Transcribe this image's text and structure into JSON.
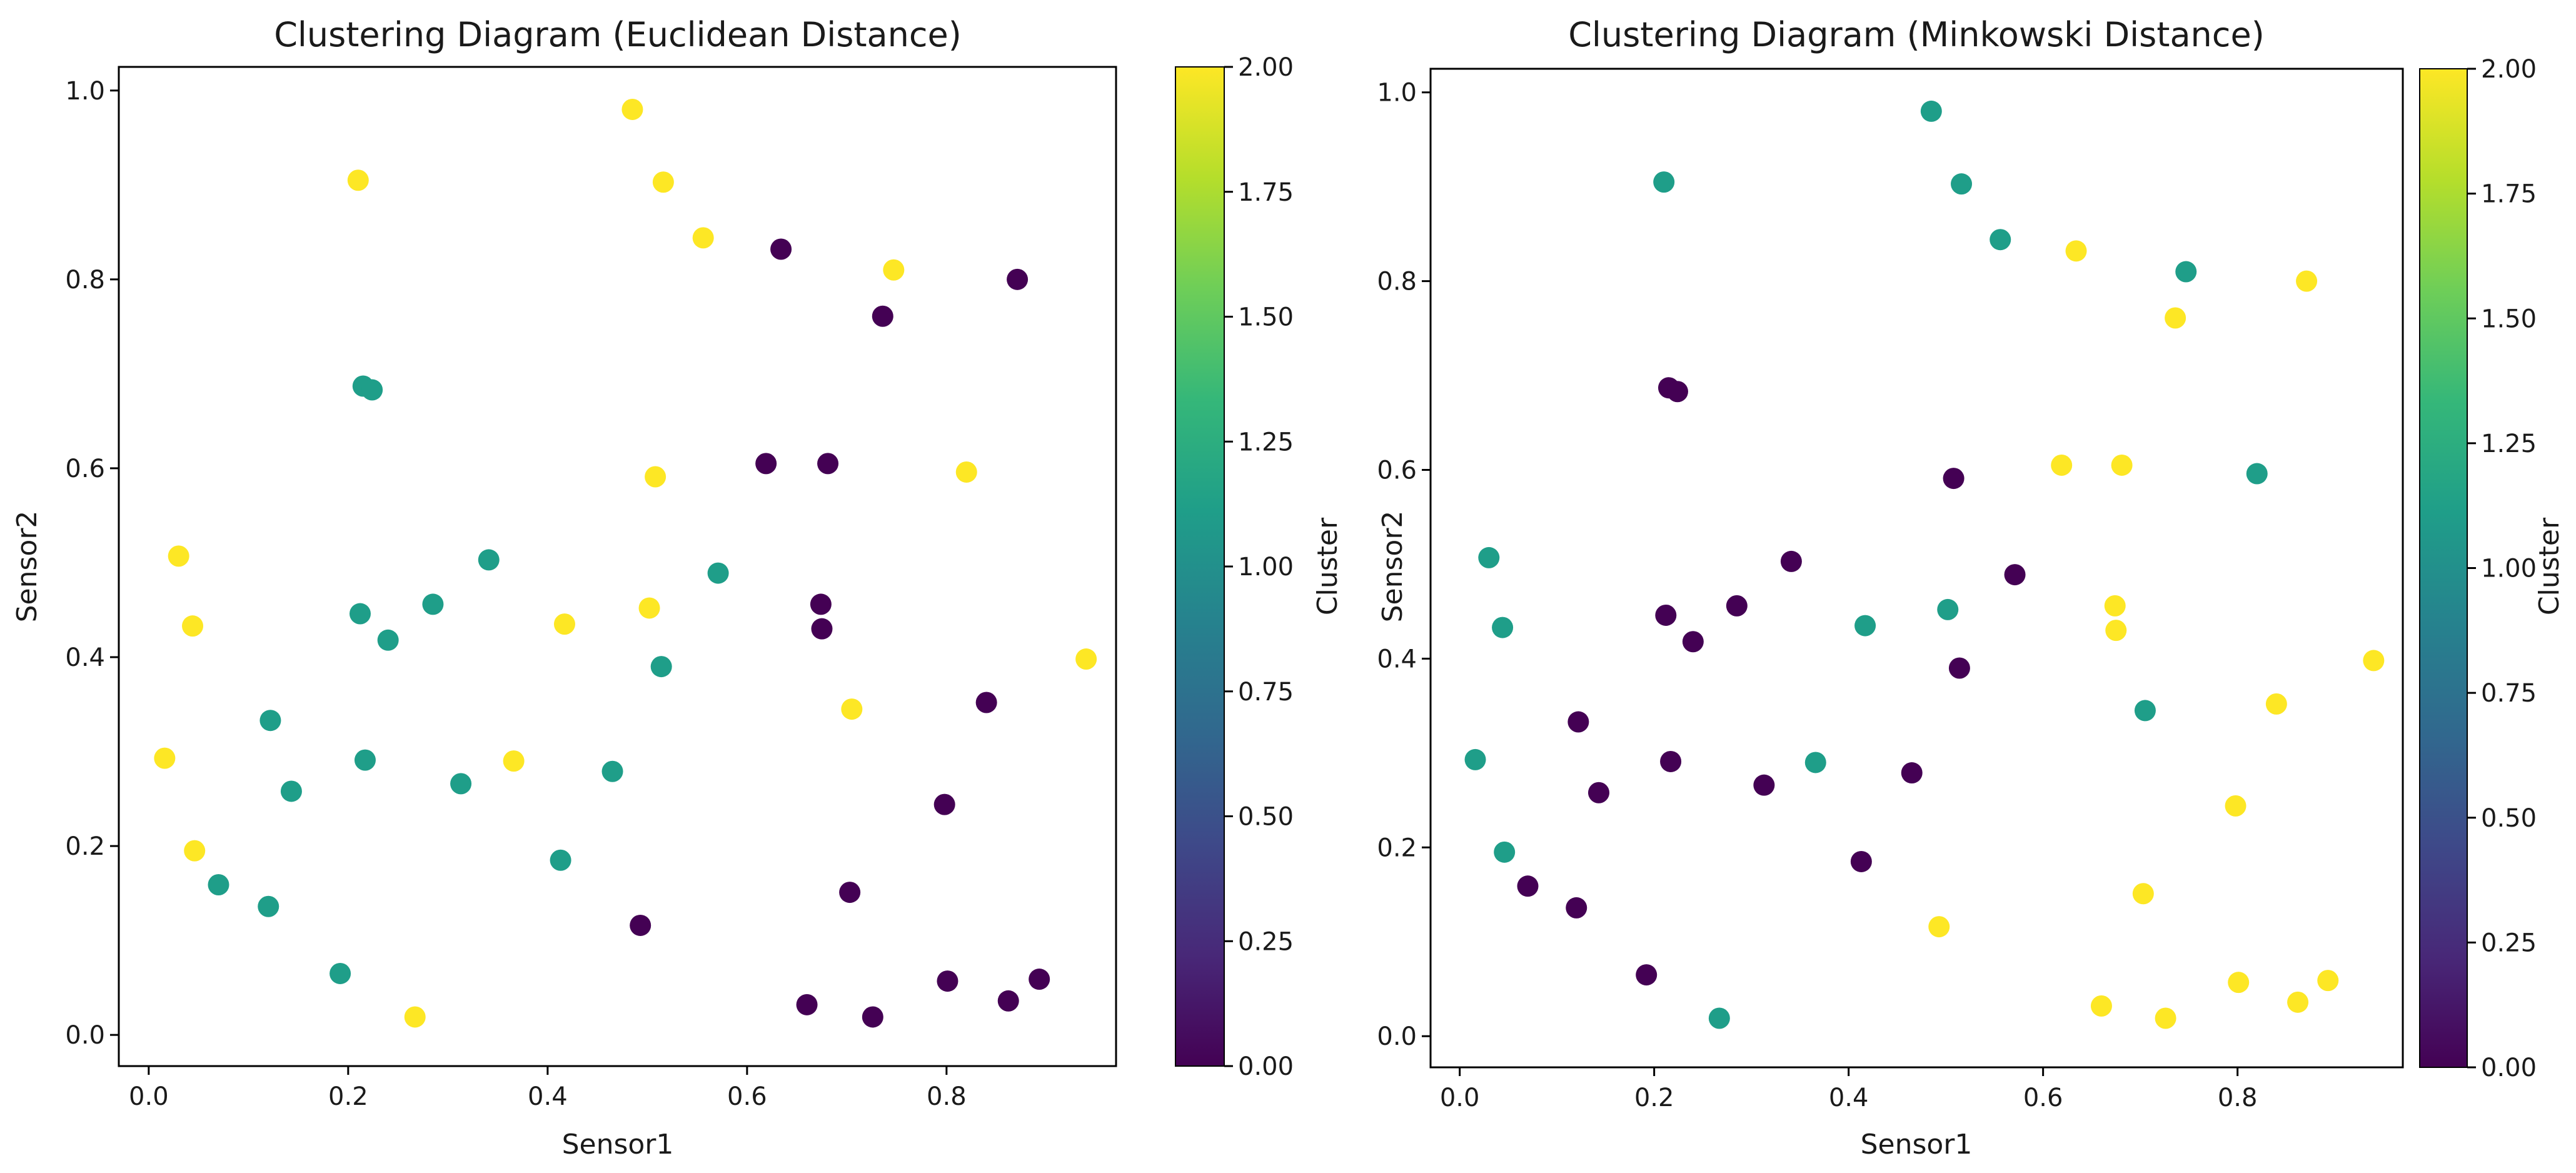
{
  "chart_data": [
    {
      "type": "scatter",
      "title": "Clustering Diagram (Euclidean Distance)",
      "xlabel": "Sensor1",
      "ylabel": "Sensor2",
      "xlim": [
        -0.03,
        0.97
      ],
      "ylim": [
        -0.033,
        1.025
      ],
      "xticks": [
        0.0,
        0.2,
        0.4,
        0.6,
        0.8
      ],
      "xtick_labels": [
        "0.0",
        "0.2",
        "0.4",
        "0.6",
        "0.8"
      ],
      "yticks": [
        0.0,
        0.2,
        0.4,
        0.6,
        0.8,
        1.0
      ],
      "ytick_labels": [
        "0.0",
        "0.2",
        "0.4",
        "0.6",
        "0.8",
        "1.0"
      ],
      "colorbar": {
        "label": "Cluster",
        "range": [
          0.0,
          2.0
        ],
        "ticks": [
          0.0,
          0.25,
          0.5,
          0.75,
          1.0,
          1.25,
          1.5,
          1.75,
          2.0
        ],
        "tick_labels": [
          "0.00",
          "0.25",
          "0.50",
          "0.75",
          "1.00",
          "1.25",
          "1.50",
          "1.75",
          "2.00"
        ],
        "colormap": "viridis"
      },
      "points": [
        {
          "x": 0.016,
          "y": 0.293,
          "cluster": 2
        },
        {
          "x": 0.03,
          "y": 0.507,
          "cluster": 2
        },
        {
          "x": 0.044,
          "y": 0.433,
          "cluster": 2
        },
        {
          "x": 0.046,
          "y": 0.195,
          "cluster": 2
        },
        {
          "x": 0.07,
          "y": 0.159,
          "cluster": 1
        },
        {
          "x": 0.12,
          "y": 0.136,
          "cluster": 1
        },
        {
          "x": 0.122,
          "y": 0.333,
          "cluster": 1
        },
        {
          "x": 0.143,
          "y": 0.258,
          "cluster": 1
        },
        {
          "x": 0.192,
          "y": 0.065,
          "cluster": 1
        },
        {
          "x": 0.21,
          "y": 0.905,
          "cluster": 2
        },
        {
          "x": 0.212,
          "y": 0.446,
          "cluster": 1
        },
        {
          "x": 0.215,
          "y": 0.687,
          "cluster": 1
        },
        {
          "x": 0.217,
          "y": 0.291,
          "cluster": 1
        },
        {
          "x": 0.224,
          "y": 0.683,
          "cluster": 1
        },
        {
          "x": 0.24,
          "y": 0.418,
          "cluster": 1
        },
        {
          "x": 0.267,
          "y": 0.019,
          "cluster": 2
        },
        {
          "x": 0.285,
          "y": 0.456,
          "cluster": 1
        },
        {
          "x": 0.313,
          "y": 0.266,
          "cluster": 1
        },
        {
          "x": 0.341,
          "y": 0.503,
          "cluster": 1
        },
        {
          "x": 0.366,
          "y": 0.29,
          "cluster": 2
        },
        {
          "x": 0.413,
          "y": 0.185,
          "cluster": 1
        },
        {
          "x": 0.417,
          "y": 0.435,
          "cluster": 2
        },
        {
          "x": 0.465,
          "y": 0.279,
          "cluster": 1
        },
        {
          "x": 0.485,
          "y": 0.98,
          "cluster": 2
        },
        {
          "x": 0.493,
          "y": 0.116,
          "cluster": 0
        },
        {
          "x": 0.502,
          "y": 0.452,
          "cluster": 2
        },
        {
          "x": 0.508,
          "y": 0.591,
          "cluster": 2
        },
        {
          "x": 0.514,
          "y": 0.39,
          "cluster": 1
        },
        {
          "x": 0.516,
          "y": 0.903,
          "cluster": 2
        },
        {
          "x": 0.556,
          "y": 0.844,
          "cluster": 2
        },
        {
          "x": 0.571,
          "y": 0.489,
          "cluster": 1
        },
        {
          "x": 0.619,
          "y": 0.605,
          "cluster": 0
        },
        {
          "x": 0.634,
          "y": 0.832,
          "cluster": 0
        },
        {
          "x": 0.66,
          "y": 0.032,
          "cluster": 0
        },
        {
          "x": 0.674,
          "y": 0.456,
          "cluster": 0
        },
        {
          "x": 0.675,
          "y": 0.43,
          "cluster": 0
        },
        {
          "x": 0.681,
          "y": 0.605,
          "cluster": 0
        },
        {
          "x": 0.703,
          "y": 0.151,
          "cluster": 0
        },
        {
          "x": 0.705,
          "y": 0.345,
          "cluster": 2
        },
        {
          "x": 0.726,
          "y": 0.019,
          "cluster": 0
        },
        {
          "x": 0.736,
          "y": 0.761,
          "cluster": 0
        },
        {
          "x": 0.747,
          "y": 0.81,
          "cluster": 2
        },
        {
          "x": 0.798,
          "y": 0.244,
          "cluster": 0
        },
        {
          "x": 0.801,
          "y": 0.057,
          "cluster": 0
        },
        {
          "x": 0.82,
          "y": 0.596,
          "cluster": 2
        },
        {
          "x": 0.84,
          "y": 0.352,
          "cluster": 0
        },
        {
          "x": 0.862,
          "y": 0.036,
          "cluster": 0
        },
        {
          "x": 0.871,
          "y": 0.8,
          "cluster": 0
        },
        {
          "x": 0.893,
          "y": 0.059,
          "cluster": 0
        },
        {
          "x": 0.94,
          "y": 0.398,
          "cluster": 2
        }
      ]
    },
    {
      "type": "scatter",
      "title": "Clustering Diagram (Minkowski Distance)",
      "xlabel": "Sensor1",
      "ylabel": "Sensor2",
      "xlim": [
        -0.03,
        0.97
      ],
      "ylim": [
        -0.033,
        1.025
      ],
      "xticks": [
        0.0,
        0.2,
        0.4,
        0.6,
        0.8
      ],
      "xtick_labels": [
        "0.0",
        "0.2",
        "0.4",
        "0.6",
        "0.8"
      ],
      "yticks": [
        0.0,
        0.2,
        0.4,
        0.6,
        0.8,
        1.0
      ],
      "ytick_labels": [
        "0.0",
        "0.2",
        "0.4",
        "0.6",
        "0.8",
        "1.0"
      ],
      "colorbar": {
        "label": "Cluster",
        "range": [
          0.0,
          2.0
        ],
        "ticks": [
          0.0,
          0.25,
          0.5,
          0.75,
          1.0,
          1.25,
          1.5,
          1.75,
          2.0
        ],
        "tick_labels": [
          "0.00",
          "0.25",
          "0.50",
          "0.75",
          "1.00",
          "1.25",
          "1.50",
          "1.75",
          "2.00"
        ],
        "colormap": "viridis"
      },
      "points": [
        {
          "x": 0.016,
          "y": 0.293,
          "cluster": 1
        },
        {
          "x": 0.03,
          "y": 0.507,
          "cluster": 1
        },
        {
          "x": 0.044,
          "y": 0.433,
          "cluster": 1
        },
        {
          "x": 0.046,
          "y": 0.195,
          "cluster": 1
        },
        {
          "x": 0.07,
          "y": 0.159,
          "cluster": 0
        },
        {
          "x": 0.12,
          "y": 0.136,
          "cluster": 0
        },
        {
          "x": 0.122,
          "y": 0.333,
          "cluster": 0
        },
        {
          "x": 0.143,
          "y": 0.258,
          "cluster": 0
        },
        {
          "x": 0.192,
          "y": 0.065,
          "cluster": 0
        },
        {
          "x": 0.21,
          "y": 0.905,
          "cluster": 1
        },
        {
          "x": 0.212,
          "y": 0.446,
          "cluster": 0
        },
        {
          "x": 0.215,
          "y": 0.687,
          "cluster": 0
        },
        {
          "x": 0.217,
          "y": 0.291,
          "cluster": 0
        },
        {
          "x": 0.224,
          "y": 0.683,
          "cluster": 0
        },
        {
          "x": 0.24,
          "y": 0.418,
          "cluster": 0
        },
        {
          "x": 0.267,
          "y": 0.019,
          "cluster": 1
        },
        {
          "x": 0.285,
          "y": 0.456,
          "cluster": 0
        },
        {
          "x": 0.313,
          "y": 0.266,
          "cluster": 0
        },
        {
          "x": 0.341,
          "y": 0.503,
          "cluster": 0
        },
        {
          "x": 0.366,
          "y": 0.29,
          "cluster": 1
        },
        {
          "x": 0.413,
          "y": 0.185,
          "cluster": 0
        },
        {
          "x": 0.417,
          "y": 0.435,
          "cluster": 1
        },
        {
          "x": 0.465,
          "y": 0.279,
          "cluster": 0
        },
        {
          "x": 0.485,
          "y": 0.98,
          "cluster": 1
        },
        {
          "x": 0.493,
          "y": 0.116,
          "cluster": 2
        },
        {
          "x": 0.502,
          "y": 0.452,
          "cluster": 1
        },
        {
          "x": 0.508,
          "y": 0.591,
          "cluster": 0
        },
        {
          "x": 0.514,
          "y": 0.39,
          "cluster": 0
        },
        {
          "x": 0.516,
          "y": 0.903,
          "cluster": 1
        },
        {
          "x": 0.556,
          "y": 0.844,
          "cluster": 1
        },
        {
          "x": 0.571,
          "y": 0.489,
          "cluster": 0
        },
        {
          "x": 0.619,
          "y": 0.605,
          "cluster": 2
        },
        {
          "x": 0.634,
          "y": 0.832,
          "cluster": 2
        },
        {
          "x": 0.66,
          "y": 0.032,
          "cluster": 2
        },
        {
          "x": 0.674,
          "y": 0.456,
          "cluster": 2
        },
        {
          "x": 0.675,
          "y": 0.43,
          "cluster": 2
        },
        {
          "x": 0.681,
          "y": 0.605,
          "cluster": 2
        },
        {
          "x": 0.703,
          "y": 0.151,
          "cluster": 2
        },
        {
          "x": 0.705,
          "y": 0.345,
          "cluster": 1
        },
        {
          "x": 0.726,
          "y": 0.019,
          "cluster": 2
        },
        {
          "x": 0.736,
          "y": 0.761,
          "cluster": 2
        },
        {
          "x": 0.747,
          "y": 0.81,
          "cluster": 1
        },
        {
          "x": 0.798,
          "y": 0.244,
          "cluster": 2
        },
        {
          "x": 0.801,
          "y": 0.057,
          "cluster": 2
        },
        {
          "x": 0.82,
          "y": 0.596,
          "cluster": 1
        },
        {
          "x": 0.84,
          "y": 0.352,
          "cluster": 2
        },
        {
          "x": 0.862,
          "y": 0.036,
          "cluster": 2
        },
        {
          "x": 0.871,
          "y": 0.8,
          "cluster": 2
        },
        {
          "x": 0.893,
          "y": 0.059,
          "cluster": 2
        },
        {
          "x": 0.94,
          "y": 0.398,
          "cluster": 2
        }
      ]
    }
  ],
  "colors": {
    "viridis": [
      "#440154",
      "#482878",
      "#3e4989",
      "#31688e",
      "#26828e",
      "#1f9e89",
      "#35b779",
      "#6ece58",
      "#b5de2b",
      "#fde725"
    ]
  }
}
